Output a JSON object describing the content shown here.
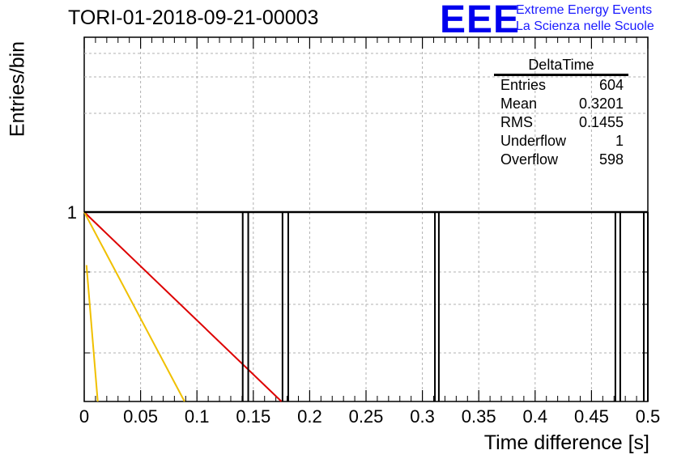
{
  "header": {
    "title": "TORI-01-2018-09-21-00003",
    "logo": "EEE",
    "logo_line1": "Extreme Energy Events",
    "logo_line2": "La Scienza nelle Scuole"
  },
  "stats": {
    "name": "DeltaTime",
    "rows": [
      {
        "label": "Entries",
        "value": "604"
      },
      {
        "label": "Mean",
        "value": "0.3201"
      },
      {
        "label": "RMS",
        "value": "0.1455"
      },
      {
        "label": "Underflow",
        "value": "1"
      },
      {
        "label": "Overflow",
        "value": "598"
      }
    ]
  },
  "chart_data": {
    "type": "bar",
    "xlabel": "Time difference [s]",
    "ylabel": "Entries/bin",
    "xlim": [
      0,
      0.5
    ],
    "y_scale": "log",
    "grid": true,
    "x_ticks": [
      "0",
      "0.05",
      "0.1",
      "0.15",
      "0.2",
      "0.25",
      "0.3",
      "0.35",
      "0.4",
      "0.45",
      "0.5"
    ],
    "y_ticks": [
      "1"
    ],
    "histogram_bins": [
      {
        "x0": 0.1406,
        "x1": 0.1455,
        "count": 1
      },
      {
        "x0": 0.1759,
        "x1": 0.181,
        "count": 1
      },
      {
        "x0": 0.3111,
        "x1": 0.3146,
        "count": 1
      },
      {
        "x0": 0.4712,
        "x1": 0.4755,
        "count": 1
      },
      {
        "x0": 0.4964,
        "x1": 0.5,
        "count": 1
      }
    ],
    "fit_lines": [
      {
        "color": "#dd0000",
        "x": [
          0.0,
          0.175
        ],
        "y": [
          1,
          0.0
        ]
      },
      {
        "color": "#f0c000",
        "x": [
          0.0,
          0.089
        ],
        "y": [
          1,
          0.0
        ]
      },
      {
        "color": "#f0c000",
        "x": [
          0.002,
          0.012
        ],
        "y": [
          0.72,
          0.0
        ]
      }
    ],
    "baseline": 1
  }
}
